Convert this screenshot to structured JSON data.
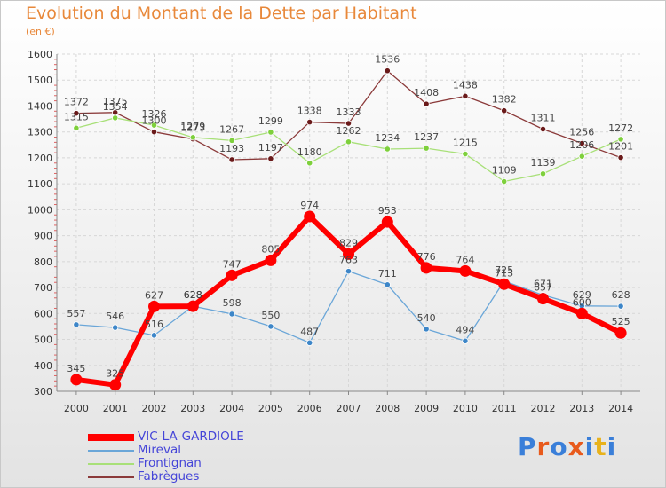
{
  "header": {
    "title": "Evolution du Montant de la Dette par Habitant",
    "subtitle": "(en €)"
  },
  "logo": {
    "text": "Proxiti",
    "colors": [
      "#3a7fd9",
      "#e85a1c",
      "#3a7fd9",
      "#e85a1c",
      "#3a7fd9",
      "#e8b21c",
      "#3a7fd9"
    ]
  },
  "chart_data": {
    "type": "line",
    "title": "Evolution du Montant de la Dette par Habitant",
    "ylabel": "(en €)",
    "xlabel": "",
    "x": [
      "2000",
      "2001",
      "2002",
      "2003",
      "2004",
      "2005",
      "2006",
      "2007",
      "2008",
      "2009",
      "2010",
      "2011",
      "2012",
      "2013",
      "2014"
    ],
    "ylim": [
      300,
      1600
    ],
    "yticks": [
      300,
      400,
      500,
      600,
      700,
      800,
      900,
      1000,
      1100,
      1200,
      1300,
      1400,
      1500,
      1600
    ],
    "grid": true,
    "legend_position": "bottom-left",
    "series": [
      {
        "name": "VIC-LA-GARDIOLE",
        "color": "#ff0000",
        "values": [
          345,
          325,
          627,
          628,
          747,
          805,
          974,
          829,
          953,
          776,
          764,
          713,
          657,
          600,
          525
        ]
      },
      {
        "name": "Mireval",
        "color": "#5a9ad0",
        "values": [
          557,
          546,
          516,
          628,
          598,
          550,
          487,
          763,
          711,
          540,
          494,
          725,
          671,
          629,
          628
        ]
      },
      {
        "name": "Frontignan",
        "color": "#88d84a",
        "values": [
          1315,
          1354,
          1326,
          1279,
          1267,
          1299,
          1180,
          1262,
          1234,
          1237,
          1215,
          1109,
          1139,
          1206,
          1272
        ]
      },
      {
        "name": "Fabrègues",
        "color": "#8b2a2a",
        "values": [
          1372,
          1375,
          1300,
          1273,
          1193,
          1197,
          1338,
          1333,
          1536,
          1408,
          1438,
          1382,
          1311,
          1256,
          1201
        ]
      }
    ]
  }
}
